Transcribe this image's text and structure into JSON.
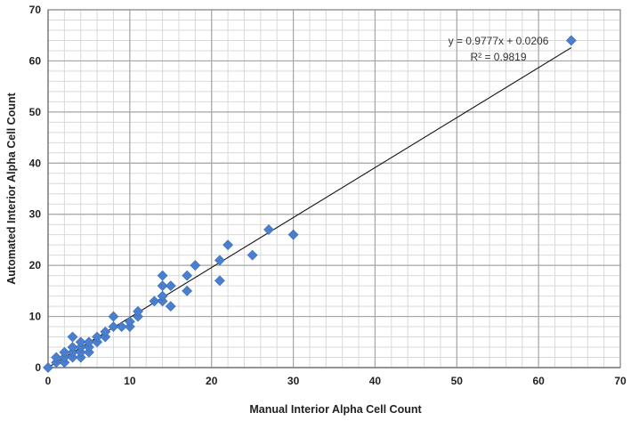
{
  "chart_data": {
    "type": "scatter",
    "title": "",
    "xlabel": "Manual Interior Alpha Cell Count",
    "ylabel": "Automated Interior Alpha Cell Count",
    "xlim": [
      0,
      70
    ],
    "ylim": [
      0,
      70
    ],
    "x_major_ticks": [
      0,
      10,
      20,
      30,
      40,
      50,
      60,
      70
    ],
    "y_major_ticks": [
      0,
      10,
      20,
      30,
      40,
      50,
      60,
      70
    ],
    "x_minor_step": 2,
    "y_minor_step": 2,
    "grid": true,
    "marker": "diamond",
    "marker_color": "#4a7fcf",
    "trendline": {
      "slope": 0.9777,
      "intercept": 0.0206,
      "x_range": [
        0,
        64
      ],
      "color": "#111111"
    },
    "annotations": [
      "y = 0.9777x + 0.0206",
      "R² = 0.9819"
    ],
    "points": [
      {
        "x": 0,
        "y": 0
      },
      {
        "x": 1,
        "y": 1
      },
      {
        "x": 1,
        "y": 2
      },
      {
        "x": 2,
        "y": 1
      },
      {
        "x": 2,
        "y": 2
      },
      {
        "x": 2,
        "y": 3
      },
      {
        "x": 3,
        "y": 2
      },
      {
        "x": 3,
        "y": 3
      },
      {
        "x": 3,
        "y": 4
      },
      {
        "x": 3,
        "y": 6
      },
      {
        "x": 4,
        "y": 2
      },
      {
        "x": 4,
        "y": 3
      },
      {
        "x": 4,
        "y": 4
      },
      {
        "x": 4,
        "y": 5
      },
      {
        "x": 5,
        "y": 3
      },
      {
        "x": 5,
        "y": 4
      },
      {
        "x": 5,
        "y": 5
      },
      {
        "x": 6,
        "y": 5
      },
      {
        "x": 6,
        "y": 6
      },
      {
        "x": 7,
        "y": 6
      },
      {
        "x": 7,
        "y": 7
      },
      {
        "x": 8,
        "y": 8
      },
      {
        "x": 8,
        "y": 10
      },
      {
        "x": 9,
        "y": 8
      },
      {
        "x": 10,
        "y": 8
      },
      {
        "x": 10,
        "y": 9
      },
      {
        "x": 11,
        "y": 10
      },
      {
        "x": 11,
        "y": 11
      },
      {
        "x": 13,
        "y": 13
      },
      {
        "x": 14,
        "y": 13
      },
      {
        "x": 14,
        "y": 14
      },
      {
        "x": 14,
        "y": 16
      },
      {
        "x": 14,
        "y": 18
      },
      {
        "x": 15,
        "y": 12
      },
      {
        "x": 15,
        "y": 16
      },
      {
        "x": 17,
        "y": 15
      },
      {
        "x": 17,
        "y": 18
      },
      {
        "x": 18,
        "y": 20
      },
      {
        "x": 21,
        "y": 17
      },
      {
        "x": 21,
        "y": 21
      },
      {
        "x": 22,
        "y": 24
      },
      {
        "x": 25,
        "y": 22
      },
      {
        "x": 27,
        "y": 27
      },
      {
        "x": 30,
        "y": 26
      },
      {
        "x": 64,
        "y": 64
      }
    ]
  }
}
